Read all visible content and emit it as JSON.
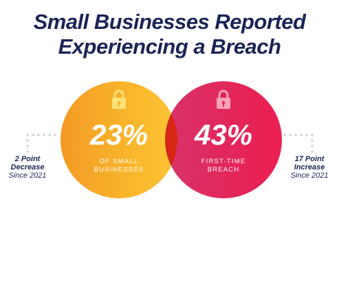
{
  "title": {
    "line1": "Small Businesses Reported",
    "line2": "Experiencing a Breach"
  },
  "colors": {
    "title": "#1b2456",
    "left_circle": "#f9b62c",
    "right_circle": "#e62357",
    "lock_left": "#fde27a",
    "lock_right": "#f7a3bb",
    "dots": "#c9ccd6"
  },
  "icons": {
    "left": "lock-icon",
    "right": "lock-icon"
  },
  "chart_data": {
    "type": "bubble",
    "values": [
      {
        "value": "23%",
        "label_line1": "OF SMALL",
        "label_line2": "BUSINESSES",
        "change_line1": "2 Point",
        "change_line2": "Decrease",
        "change_line3": "Since 2021"
      },
      {
        "value": "43%",
        "label_line1": "FIRST-TIME",
        "label_line2": "BREACH",
        "change_line1": "17 Point",
        "change_line2": "Increase",
        "change_line3": "Since 2021"
      }
    ]
  }
}
